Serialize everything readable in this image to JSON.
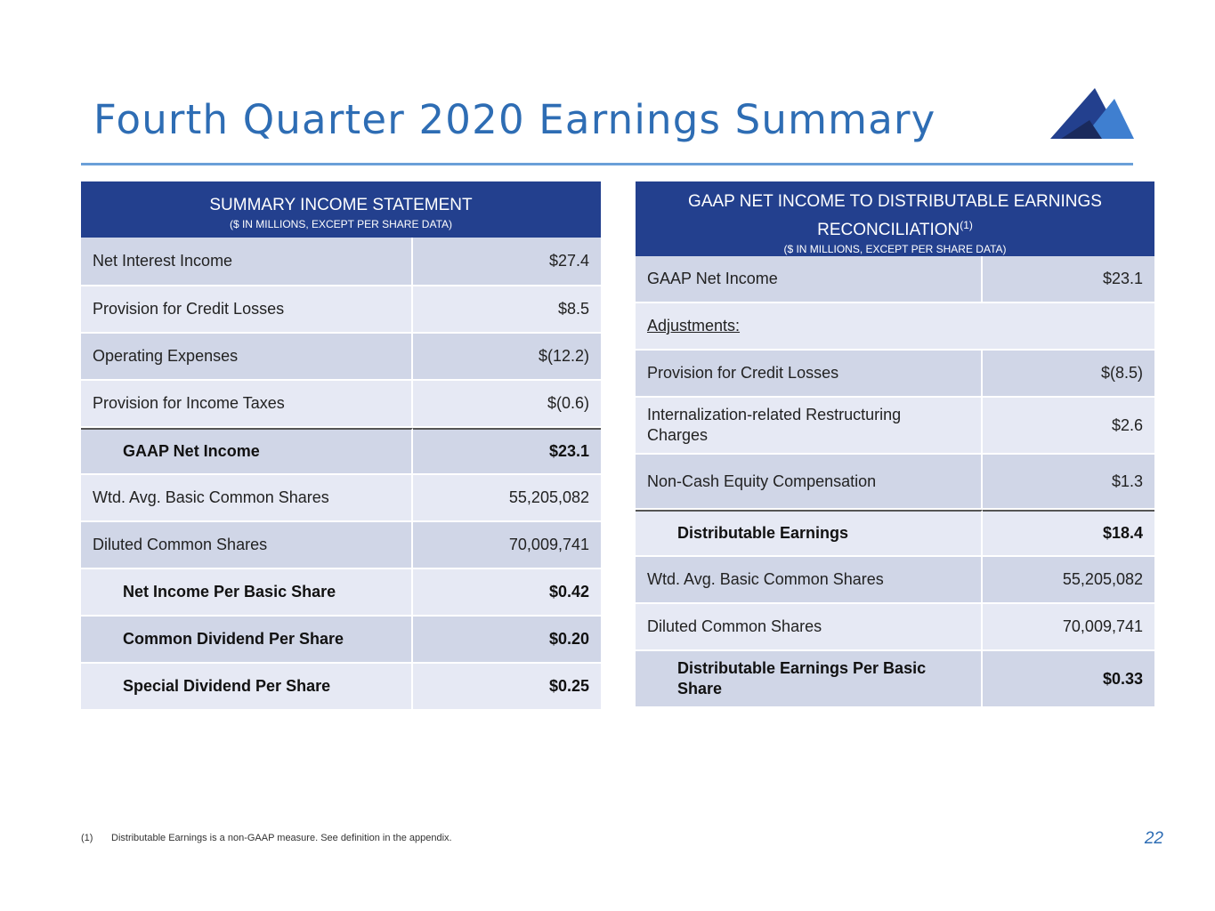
{
  "page": {
    "title": "Fourth Quarter 2020 Earnings Summary",
    "page_number": "22",
    "footnote_marker": "(1)",
    "footnote_text": "Distributable Earnings is a non-GAAP measure.  See definition in the appendix."
  },
  "left_table": {
    "header": "SUMMARY INCOME STATEMENT",
    "subheader": "($ IN MILLIONS, EXCEPT PER SHARE DATA)",
    "rows": [
      {
        "label": "Net Interest Income",
        "value": "$27.4"
      },
      {
        "label": "Provision for Credit Losses",
        "value": "$8.5"
      },
      {
        "label": "Operating Expenses",
        "value": "$(12.2)"
      },
      {
        "label": "Provision for Income Taxes",
        "value": "$(0.6)"
      },
      {
        "label": "GAAP Net Income",
        "value": "$23.1"
      },
      {
        "label": "Wtd. Avg. Basic Common Shares",
        "value": "55,205,082"
      },
      {
        "label": "Diluted Common Shares",
        "value": "70,009,741"
      },
      {
        "label": "Net Income Per Basic Share",
        "value": "$0.42"
      },
      {
        "label": "Common Dividend Per Share",
        "value": "$0.20"
      },
      {
        "label": "Special Dividend Per Share",
        "value": "$0.25"
      }
    ]
  },
  "right_table": {
    "header_line1": "GAAP NET INCOME TO DISTRIBUTABLE EARNINGS",
    "header_line2": "RECONCILIATION",
    "header_sup": "(1)",
    "subheader": "($ IN MILLIONS, EXCEPT PER SHARE DATA)",
    "rows": [
      {
        "label": "GAAP Net Income",
        "value": "$23.1"
      },
      {
        "label": "Adjustments:",
        "value": ""
      },
      {
        "label": "Provision for Credit Losses",
        "value": "$(8.5)"
      },
      {
        "label": "Internalization-related Restructuring Charges",
        "value": "$2.6"
      },
      {
        "label": "Non-Cash Equity Compensation",
        "value": "$1.3"
      },
      {
        "label": "Distributable Earnings",
        "value": "$18.4"
      },
      {
        "label": "Wtd. Avg. Basic Common Shares",
        "value": "55,205,082"
      },
      {
        "label": "Diluted Common Shares",
        "value": "70,009,741"
      },
      {
        "label": "Distributable Earnings Per Basic Share",
        "value": "$0.33"
      }
    ]
  },
  "colors": {
    "title": "#2e6db4",
    "header_bg": "#23408e",
    "row_dark": "#d0d6e7",
    "row_light": "#e6e9f4",
    "rule": "#6a9fd8"
  }
}
